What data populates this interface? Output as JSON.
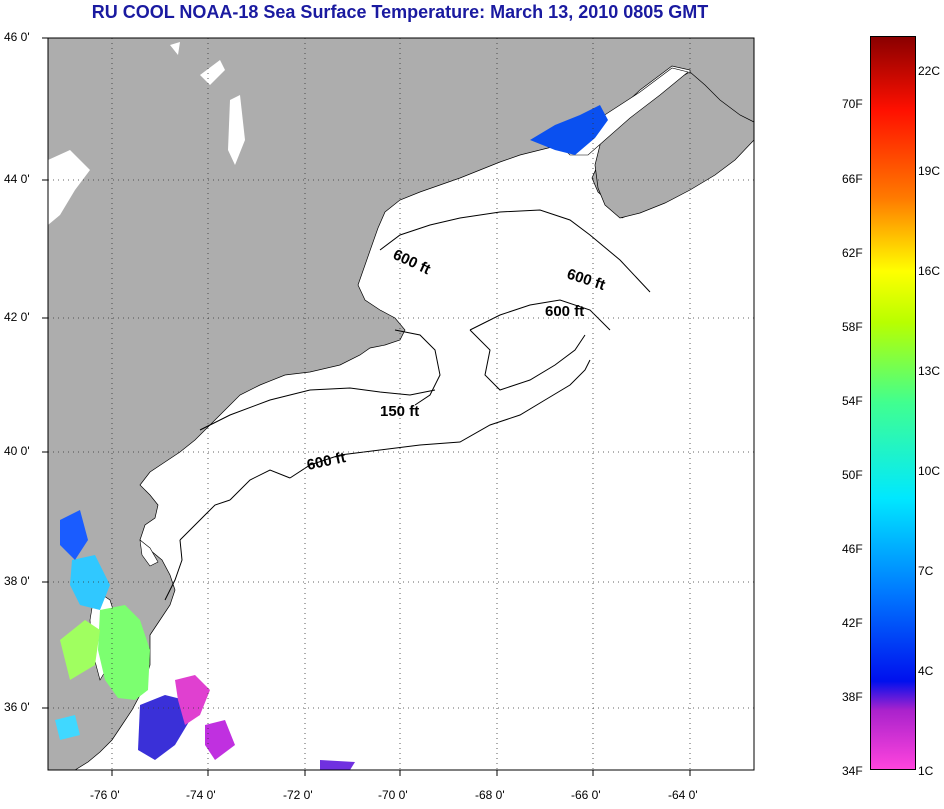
{
  "title": "RU COOL  NOAA-18  Sea Surface Temperature:  March 13, 2010 0805 GMT",
  "map": {
    "lat_ticks": [
      "46 0'",
      "44 0'",
      "42 0'",
      "40 0'",
      "38 0'",
      "36 0'"
    ],
    "lon_ticks": [
      "-76 0'",
      "-74 0'",
      "-72 0'",
      "-70 0'",
      "-68 0'",
      "-66 0'",
      "-64 0'"
    ],
    "contour_labels": [
      "600 ft",
      "600 ft",
      "600 ft",
      "150 ft",
      "600 ft"
    ],
    "colors": {
      "land": "#adadad",
      "ocean": "#ffffff",
      "title": "#1a1aa0"
    }
  },
  "colorbar": {
    "fahrenheit": [
      "70F",
      "66F",
      "62F",
      "58F",
      "54F",
      "50F",
      "46F",
      "42F",
      "38F",
      "34F"
    ],
    "celsius": [
      "22C",
      "19C",
      "16C",
      "13C",
      "10C",
      "7C",
      "4C",
      "1C"
    ]
  }
}
